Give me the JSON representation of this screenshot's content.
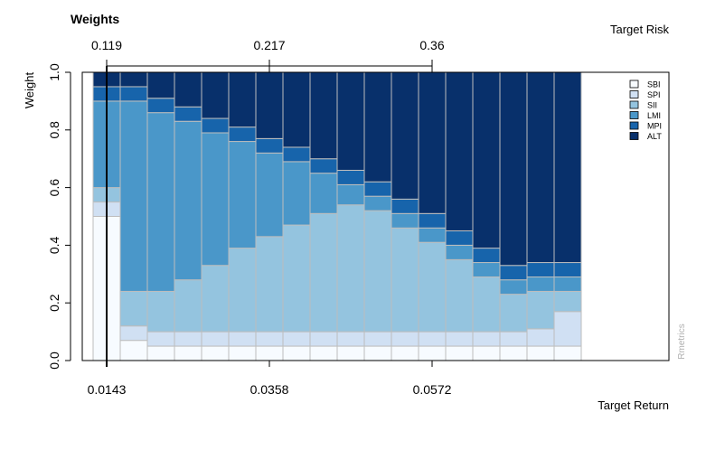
{
  "chart_data": {
    "type": "bar",
    "stacked": true,
    "title": "Weights",
    "ylabel": "Weight",
    "top_axis_label": "Target Risk",
    "bottom_axis_label": "Target Return",
    "credit": "Rmetrics",
    "ylim": [
      0,
      1
    ],
    "yticks": [
      "0.0",
      "0.2",
      "0.4",
      "0.6",
      "0.8",
      "1.0"
    ],
    "ytick_values": [
      0,
      0.2,
      0.4,
      0.6,
      0.8,
      1.0
    ],
    "bottom_ticks": [
      {
        "bar": 1,
        "label": "0.0143"
      },
      {
        "bar": 7,
        "label": "0.0358"
      },
      {
        "bar": 13,
        "label": "0.0572"
      }
    ],
    "top_ticks": [
      {
        "bar": 1,
        "label": "0.119"
      },
      {
        "bar": 7,
        "label": "0.217"
      },
      {
        "bar": 13,
        "label": "0.36"
      }
    ],
    "highlight_bar": 1,
    "legend_position": "top-right",
    "series": [
      {
        "name": "SBI",
        "color": "#f7fbff",
        "values": [
          0.5,
          0.07,
          0.05,
          0.05,
          0.05,
          0.05,
          0.05,
          0.05,
          0.05,
          0.05,
          0.05,
          0.05,
          0.05,
          0.05,
          0.05,
          0.05,
          0.05,
          0.05
        ]
      },
      {
        "name": "SPI",
        "color": "#d0e0f3",
        "values": [
          0.05,
          0.05,
          0.05,
          0.05,
          0.05,
          0.05,
          0.05,
          0.05,
          0.05,
          0.05,
          0.05,
          0.05,
          0.05,
          0.05,
          0.05,
          0.05,
          0.06,
          0.12
        ]
      },
      {
        "name": "SII",
        "color": "#94c4df",
        "values": [
          0.05,
          0.12,
          0.14,
          0.18,
          0.23,
          0.29,
          0.33,
          0.37,
          0.41,
          0.44,
          0.42,
          0.36,
          0.31,
          0.25,
          0.19,
          0.13,
          0.13,
          0.07
        ]
      },
      {
        "name": "LMI",
        "color": "#4a97c9",
        "values": [
          0.3,
          0.66,
          0.62,
          0.55,
          0.46,
          0.37,
          0.29,
          0.22,
          0.14,
          0.07,
          0.05,
          0.05,
          0.05,
          0.05,
          0.05,
          0.05,
          0.05,
          0.05
        ]
      },
      {
        "name": "MPI",
        "color": "#1764ab",
        "values": [
          0.05,
          0.05,
          0.05,
          0.05,
          0.05,
          0.05,
          0.05,
          0.05,
          0.05,
          0.05,
          0.05,
          0.05,
          0.05,
          0.05,
          0.05,
          0.05,
          0.05,
          0.05
        ]
      },
      {
        "name": "ALT",
        "color": "#08306b",
        "values": [
          0.05,
          0.05,
          0.09,
          0.12,
          0.16,
          0.19,
          0.23,
          0.26,
          0.3,
          0.34,
          0.38,
          0.44,
          0.49,
          0.55,
          0.61,
          0.67,
          0.66,
          0.66
        ]
      }
    ]
  }
}
